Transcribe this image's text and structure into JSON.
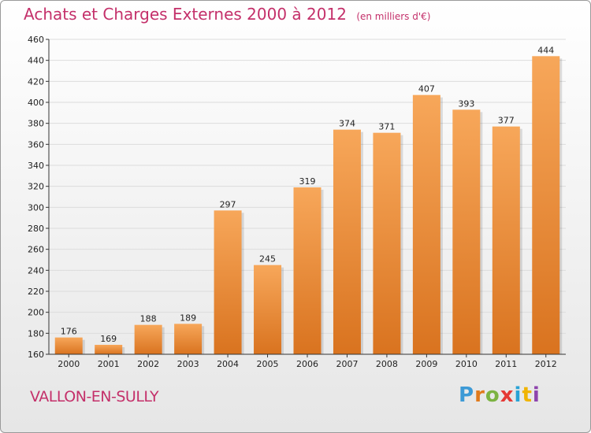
{
  "title": "Achats et Charges Externes 2000 à 2012",
  "subtitle": "(en milliers d'€)",
  "place": "VALLON-EN-SULLY",
  "logo": {
    "letters": [
      "P",
      "r",
      "o",
      "x",
      "i",
      "t",
      "i"
    ],
    "colors": [
      "#3d9ad6",
      "#e07a1c",
      "#7cb342",
      "#e53935",
      "#29a3d6",
      "#f0b400",
      "#8e44ad"
    ]
  },
  "colors": {
    "bar_light": "#f7a75a",
    "bar_dark": "#d9731f",
    "title": "#c4306a"
  },
  "chart_data": {
    "type": "bar",
    "categories": [
      "2000",
      "2001",
      "2002",
      "2003",
      "2004",
      "2005",
      "2006",
      "2007",
      "2008",
      "2009",
      "2010",
      "2011",
      "2012"
    ],
    "values": [
      176,
      169,
      188,
      189,
      297,
      245,
      319,
      374,
      371,
      407,
      393,
      377,
      444
    ],
    "title": "Achats et Charges Externes 2000 à 2012",
    "ylim": [
      160,
      460
    ],
    "yticks": [
      160,
      180,
      200,
      220,
      240,
      260,
      280,
      300,
      320,
      340,
      360,
      380,
      400,
      420,
      440,
      460
    ],
    "grid": true
  }
}
